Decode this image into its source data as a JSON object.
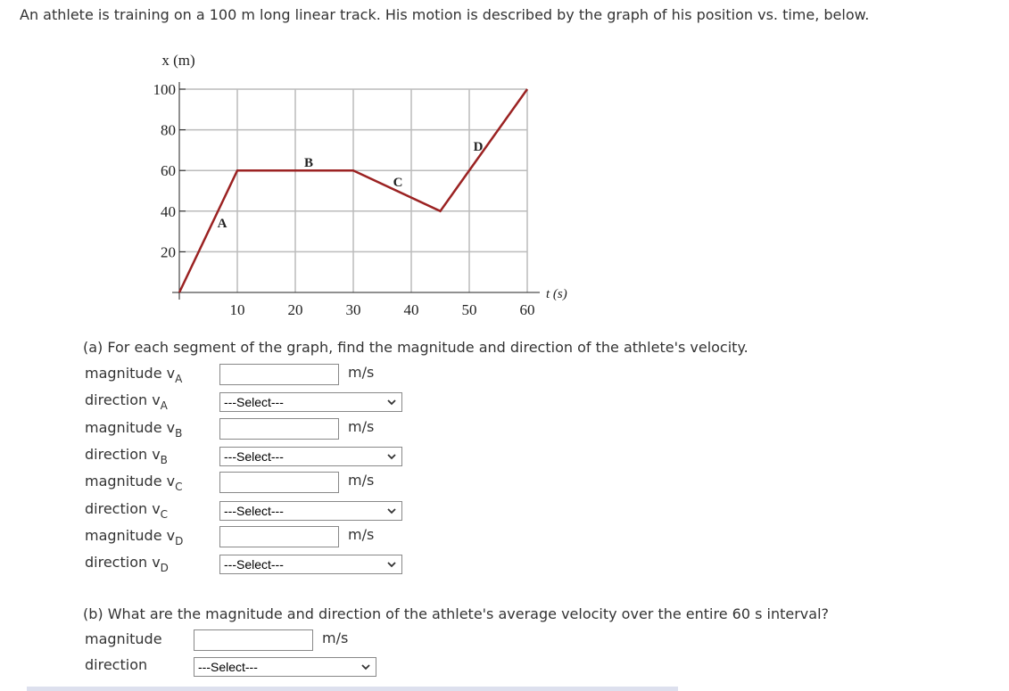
{
  "intro": "An athlete is training on a 100 m long linear track. His motion is described by the graph of his position vs. time, below.",
  "chart_data": {
    "type": "line",
    "ylabel": "x (m)",
    "xlabel": "t (s)",
    "x": [
      0,
      10,
      30,
      45,
      60
    ],
    "values": [
      0,
      60,
      60,
      40,
      100
    ],
    "color": "#9b2222",
    "xlim": [
      0,
      60
    ],
    "ylim": [
      0,
      100
    ],
    "xticks": [
      10,
      20,
      30,
      40,
      50,
      60
    ],
    "yticks": [
      20,
      40,
      60,
      80,
      100
    ],
    "grid": true,
    "segment_labels": [
      "A",
      "B",
      "C",
      "D"
    ]
  },
  "part_a": {
    "question": "(a) For each segment of the graph, find the magnitude and direction of the athlete's velocity.",
    "rows": [
      {
        "label": "magnitude v",
        "sub": "A",
        "unit": "m/s"
      },
      {
        "label": "direction v",
        "sub": "A",
        "select": "---Select---"
      },
      {
        "label": "magnitude v",
        "sub": "B",
        "unit": "m/s"
      },
      {
        "label": "direction v",
        "sub": "B",
        "select": "---Select---"
      },
      {
        "label": "magnitude v",
        "sub": "C",
        "unit": "m/s"
      },
      {
        "label": "direction v",
        "sub": "C",
        "select": "---Select---"
      },
      {
        "label": "magnitude v",
        "sub": "D",
        "unit": "m/s"
      },
      {
        "label": "direction v",
        "sub": "D",
        "select": "---Select---"
      }
    ]
  },
  "part_b": {
    "question": "(b) What are the magnitude and direction of the athlete's average velocity over the entire 60 s interval?",
    "rows": [
      {
        "label": "magnitude",
        "unit": "m/s"
      },
      {
        "label": "direction",
        "select": "---Select---"
      }
    ]
  }
}
